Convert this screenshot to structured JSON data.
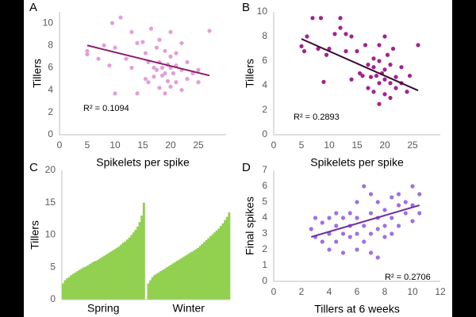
{
  "chart_data": [
    {
      "type": "scatter",
      "label": "A",
      "xlabel": "Spikelets per spike",
      "ylabel": "Tillers",
      "annotation": "R² = 0.1094",
      "color": "#e39fd8",
      "xlim": [
        0,
        30
      ],
      "xticks": [
        0,
        5,
        10,
        15,
        20,
        25
      ],
      "ylim": [
        0,
        11
      ],
      "yticks": [
        0,
        2,
        4,
        6,
        8,
        10
      ],
      "x": [
        5,
        5,
        7,
        8,
        9,
        9.5,
        10,
        10,
        11,
        12,
        13,
        13,
        14,
        14,
        15,
        15.5,
        15.5,
        16,
        16,
        16.5,
        17,
        17,
        17.5,
        17.5,
        18,
        18,
        18,
        18.5,
        18.5,
        19,
        19,
        19,
        19.5,
        19.5,
        20,
        20,
        20,
        20,
        20.5,
        21,
        21,
        21,
        22,
        22,
        22,
        23,
        23,
        24,
        25,
        25,
        27
      ],
      "y": [
        7.5,
        7.2,
        6.8,
        8,
        6.2,
        10,
        7.8,
        3.7,
        10.5,
        6.8,
        9.2,
        6,
        8.2,
        3.7,
        8.3,
        7.3,
        5,
        6.5,
        4.7,
        9.5,
        6,
        5.2,
        7.8,
        5.8,
        8.5,
        6.5,
        4.2,
        6,
        5.3,
        7.5,
        5.5,
        3.7,
        6.3,
        4.8,
        9.2,
        7,
        6,
        4.3,
        5.5,
        7.3,
        6.2,
        4.7,
        8.2,
        5.8,
        4,
        6.5,
        5,
        5.5,
        4.7,
        5.8,
        9.3
      ],
      "trendline": {
        "x": [
          5,
          27
        ],
        "y": [
          8.0,
          5.3
        ],
        "color": "#8b1a6b"
      }
    },
    {
      "type": "scatter",
      "label": "B",
      "xlabel": "Spikelets per spike",
      "ylabel": "Tillers",
      "annotation": "R² = 0.2893",
      "color": "#a3238f",
      "xlim": [
        0,
        30
      ],
      "xticks": [
        0,
        5,
        10,
        15,
        20,
        25
      ],
      "ylim": [
        0,
        10
      ],
      "yticks": [
        0,
        2,
        4,
        6,
        8,
        10
      ],
      "x": [
        5,
        5.5,
        6,
        7,
        8.5,
        8,
        9,
        9.5,
        10,
        11,
        12,
        12,
        13,
        13,
        14,
        14,
        15,
        15.5,
        16,
        16.5,
        17,
        17,
        17.5,
        18,
        18,
        18,
        18.5,
        19,
        19,
        19,
        19,
        19.5,
        20,
        20,
        20,
        20,
        20.5,
        21,
        21,
        21,
        21.5,
        22,
        22,
        23,
        23,
        24,
        24.5,
        26
      ],
      "y": [
        7.2,
        6.8,
        8,
        9.5,
        9.5,
        7,
        4.3,
        6.5,
        7,
        8.2,
        9.5,
        8.7,
        8.2,
        6.8,
        8,
        4.5,
        6.8,
        5,
        4.8,
        7.3,
        5.7,
        3.8,
        4.7,
        6.2,
        5.5,
        3.5,
        4.8,
        7.3,
        6,
        4.2,
        2.5,
        5,
        8,
        5.3,
        4.5,
        3.3,
        6.5,
        5.7,
        4.2,
        3,
        7,
        4.7,
        3.8,
        5.5,
        4.2,
        3.5,
        4.8,
        7.3
      ],
      "trendline": {
        "x": [
          5,
          26
        ],
        "y": [
          7.8,
          3.6
        ],
        "color": "#3a0a30"
      }
    },
    {
      "type": "bar",
      "label": "C",
      "ylabel": "Tillers",
      "color": "#92d050",
      "ylim": [
        0,
        20
      ],
      "yticks": [
        0,
        5,
        10,
        15,
        20
      ],
      "groups": [
        {
          "name": "Spring",
          "values": [
            2.5,
            3,
            3.3,
            3.5,
            3.8,
            4,
            4.2,
            4.4,
            4.6,
            4.8,
            5,
            5.1,
            5.3,
            5.5,
            5.7,
            5.9,
            6,
            6.2,
            6.4,
            6.6,
            6.8,
            7,
            7.2,
            7.4,
            7.6,
            7.8,
            8,
            8.2,
            8.5,
            8.8,
            9,
            9.3,
            9.6,
            10,
            10.4,
            10.8,
            11.3,
            12,
            13,
            15
          ]
        },
        {
          "name": "Winter",
          "values": [
            2.5,
            3,
            3.5,
            3.8,
            4,
            4.2,
            4.4,
            4.6,
            4.8,
            5,
            5.2,
            5.4,
            5.6,
            5.8,
            6,
            6.2,
            6.4,
            6.6,
            6.8,
            7,
            7.2,
            7.4,
            7.6,
            7.8,
            8,
            8.3,
            8.6,
            8.9,
            9.2,
            9.5,
            9.8,
            10.1,
            10.4,
            10.7,
            11,
            11.4,
            11.8,
            12.3,
            12.8,
            13.5
          ]
        }
      ]
    },
    {
      "type": "scatter",
      "label": "D",
      "xlabel": "Tillers at 6 weeks",
      "ylabel": "Final spikes",
      "annotation": "R² = 0.2706",
      "color": "#a070e0",
      "xlim": [
        0,
        12
      ],
      "xticks": [
        0,
        2,
        4,
        6,
        8,
        10,
        12
      ],
      "ylim": [
        0,
        7
      ],
      "yticks": [
        0,
        1,
        2,
        3,
        4,
        5,
        6,
        7
      ],
      "x": [
        2.7,
        3,
        3,
        3.5,
        3.5,
        4,
        4,
        4,
        4.5,
        4.5,
        4.5,
        5,
        5,
        5,
        5.5,
        5.5,
        5.5,
        6,
        6,
        6,
        6,
        6.5,
        6.5,
        6.5,
        7,
        7,
        7,
        7,
        7.5,
        7.5,
        7.5,
        7.5,
        8,
        8,
        8,
        8.5,
        8.5,
        8.5,
        9,
        9,
        9,
        9.5,
        9.5,
        10,
        10,
        10,
        10.5,
        10.5
      ],
      "y": [
        3.3,
        2.8,
        4,
        3.7,
        2.5,
        3,
        4,
        2,
        3.5,
        4.3,
        2.5,
        3,
        4,
        1.8,
        3.5,
        2.8,
        4.3,
        3,
        4,
        5,
        2,
        3.5,
        6,
        2.5,
        4.3,
        3,
        5.5,
        1.8,
        4,
        3.3,
        5,
        1.5,
        4.5,
        3.5,
        2.8,
        4,
        5.3,
        3,
        4.8,
        3.5,
        5.5,
        4.3,
        5,
        6,
        4.8,
        3.8,
        5.5,
        4.3
      ],
      "trendline": {
        "x": [
          2.7,
          10.5
        ],
        "y": [
          2.8,
          4.8
        ],
        "color": "#7030a0"
      }
    }
  ]
}
